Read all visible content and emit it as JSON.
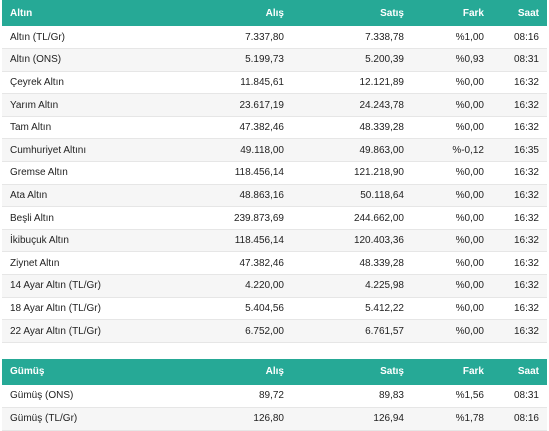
{
  "gold": {
    "headers": {
      "name": "Altın",
      "buy": "Alış",
      "sell": "Satış",
      "change": "Fark",
      "time": "Saat"
    },
    "rows": [
      {
        "name": "Altın (TL/Gr)",
        "buy": "7.337,80",
        "sell": "7.338,78",
        "change": "%1,00",
        "time": "08:16"
      },
      {
        "name": "Altın (ONS)",
        "buy": "5.199,73",
        "sell": "5.200,39",
        "change": "%0,93",
        "time": "08:31"
      },
      {
        "name": "Çeyrek Altın",
        "buy": "11.845,61",
        "sell": "12.121,89",
        "change": "%0,00",
        "time": "16:32"
      },
      {
        "name": "Yarım Altın",
        "buy": "23.617,19",
        "sell": "24.243,78",
        "change": "%0,00",
        "time": "16:32"
      },
      {
        "name": "Tam Altın",
        "buy": "47.382,46",
        "sell": "48.339,28",
        "change": "%0,00",
        "time": "16:32"
      },
      {
        "name": "Cumhuriyet Altını",
        "buy": "49.118,00",
        "sell": "49.863,00",
        "change": "%-0,12",
        "time": "16:35"
      },
      {
        "name": "Gremse Altın",
        "buy": "118.456,14",
        "sell": "121.218,90",
        "change": "%0,00",
        "time": "16:32"
      },
      {
        "name": "Ata Altın",
        "buy": "48.863,16",
        "sell": "50.118,64",
        "change": "%0,00",
        "time": "16:32"
      },
      {
        "name": "Beşli Altın",
        "buy": "239.873,69",
        "sell": "244.662,00",
        "change": "%0,00",
        "time": "16:32"
      },
      {
        "name": "İkibuçuk Altın",
        "buy": "118.456,14",
        "sell": "120.403,36",
        "change": "%0,00",
        "time": "16:32"
      },
      {
        "name": "Ziynet Altın",
        "buy": "47.382,46",
        "sell": "48.339,28",
        "change": "%0,00",
        "time": "16:32"
      },
      {
        "name": "14 Ayar Altın (TL/Gr)",
        "buy": "4.220,00",
        "sell": "4.225,98",
        "change": "%0,00",
        "time": "16:32"
      },
      {
        "name": "18 Ayar Altın (TL/Gr)",
        "buy": "5.404,56",
        "sell": "5.412,22",
        "change": "%0,00",
        "time": "16:32"
      },
      {
        "name": "22 Ayar Altın (TL/Gr)",
        "buy": "6.752,00",
        "sell": "6.761,57",
        "change": "%0,00",
        "time": "16:32"
      }
    ]
  },
  "silver": {
    "headers": {
      "name": "Gümüş",
      "buy": "Alış",
      "sell": "Satış",
      "change": "Fark",
      "time": "Saat"
    },
    "rows": [
      {
        "name": "Gümüş (ONS)",
        "buy": "89,72",
        "sell": "89,83",
        "change": "%1,56",
        "time": "08:31"
      },
      {
        "name": "Gümüş (TL/Gr)",
        "buy": "126,80",
        "sell": "126,94",
        "change": "%1,78",
        "time": "08:16"
      }
    ]
  },
  "colors": {
    "header_bg": "#26a996",
    "header_text": "#ffffff",
    "row_alt_bg": "#f6f6f6"
  }
}
